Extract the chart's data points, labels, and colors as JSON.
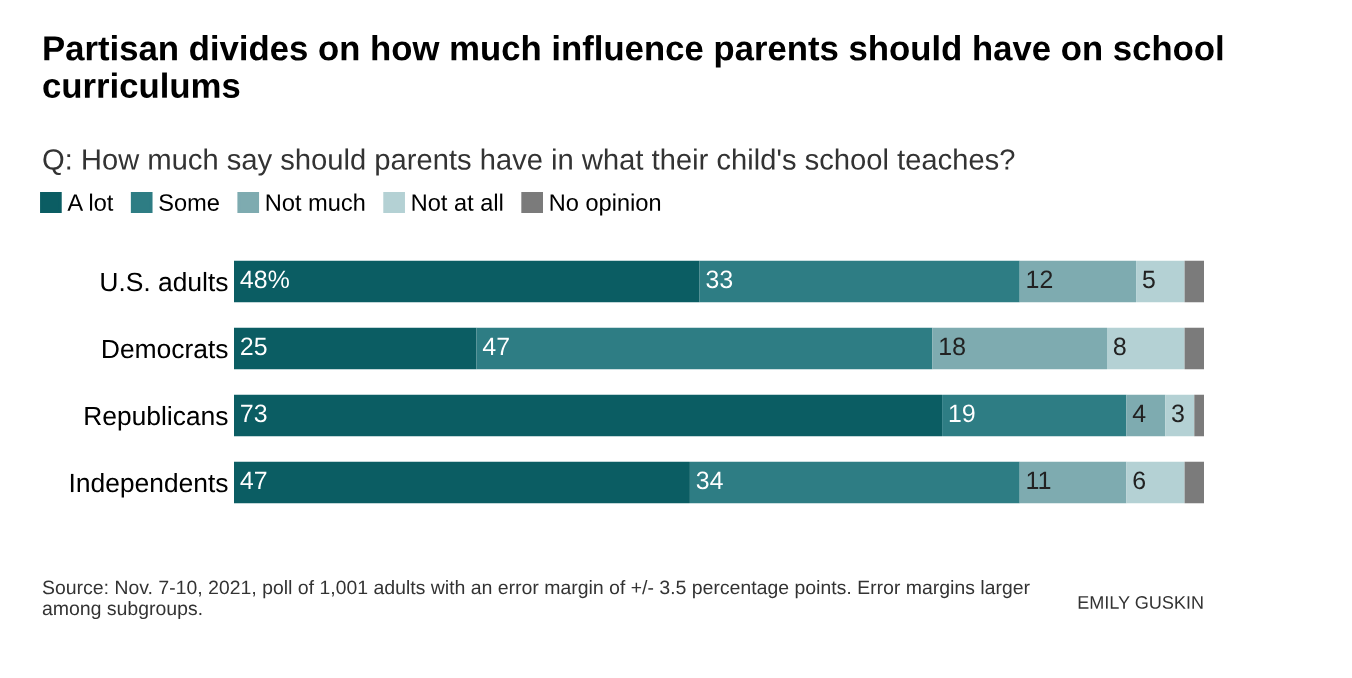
{
  "chart_data": {
    "type": "bar",
    "orientation": "horizontal",
    "stacked": true,
    "title": "Partisan divides on how much influence parents should have on school curriculums",
    "subtitle": "Q: How much say should parents have in what their child's school teaches?",
    "categories": [
      "U.S. adults",
      "Democrats",
      "Republicans",
      "Independents"
    ],
    "series": [
      {
        "name": "A lot",
        "color": "#0b5d63",
        "values": [
          48,
          25,
          73,
          47
        ],
        "value_labels": [
          "48%",
          "25",
          "73",
          "47"
        ]
      },
      {
        "name": "Some",
        "color": "#2e7d84",
        "values": [
          33,
          47,
          19,
          34
        ],
        "value_labels": [
          "33",
          "47",
          "19",
          "34"
        ]
      },
      {
        "name": "Not much",
        "color": "#7eabb0",
        "values": [
          12,
          18,
          4,
          11
        ],
        "value_labels": [
          "12",
          "18",
          "4",
          "11"
        ]
      },
      {
        "name": "Not at all",
        "color": "#b4d1d4",
        "values": [
          5,
          8,
          3,
          6
        ],
        "value_labels": [
          "5",
          "8",
          "3",
          "6"
        ]
      },
      {
        "name": "No opinion",
        "color": "#7b7b7b",
        "values": [
          2,
          2,
          1,
          2
        ]
      }
    ],
    "legend": "top left",
    "annotations": [
      "Source: Nov. 7-10, 2021, poll of 1,001 adults with an error margin of +/- 3.5 percentage points. Error margins larger among subgroups.",
      "EMILY GUSKIN"
    ]
  }
}
